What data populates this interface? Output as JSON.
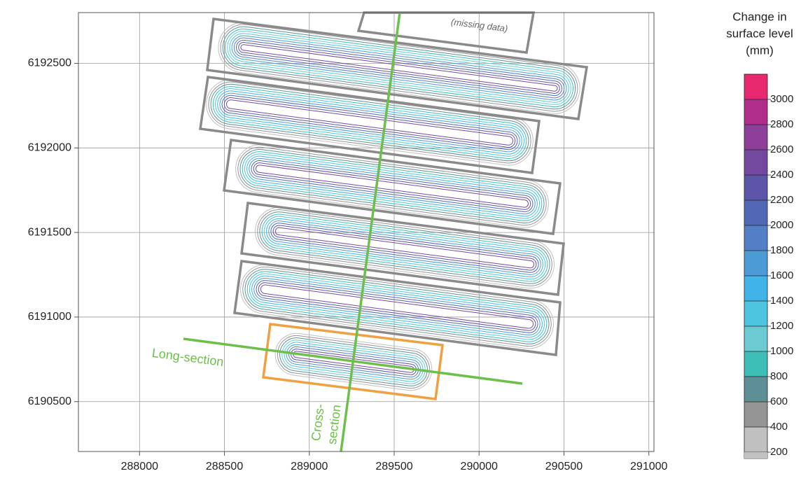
{
  "chart_data": {
    "type": "contour",
    "xlim": [
      287640,
      291030
    ],
    "ylim": [
      6190205,
      6192800
    ],
    "xticks": [
      288000,
      288500,
      289000,
      289500,
      290000,
      290500,
      291000
    ],
    "yticks": [
      6190500,
      6191000,
      6191500,
      6192000,
      6192500
    ],
    "grid": true,
    "annotations": [
      "Long-section",
      "Cross-",
      "section",
      "(missing data)"
    ],
    "colorbar": {
      "title": [
        "Change in",
        "surface level",
        "(mm)"
      ],
      "ticks": [
        200,
        400,
        600,
        800,
        1000,
        1200,
        1400,
        1600,
        1800,
        2000,
        2200,
        2400,
        2600,
        2800,
        3000
      ],
      "colors": [
        "#c0c0c0",
        "#959595",
        "#5e8f96",
        "#3cbdb6",
        "#6ccbd2",
        "#4cc6e0",
        "#40b4e8",
        "#4c9ad6",
        "#547fc6",
        "#5068b6",
        "#5c55a8",
        "#7349a0",
        "#8e3f9a",
        "#b02f8c",
        "#e8296f"
      ]
    }
  }
}
